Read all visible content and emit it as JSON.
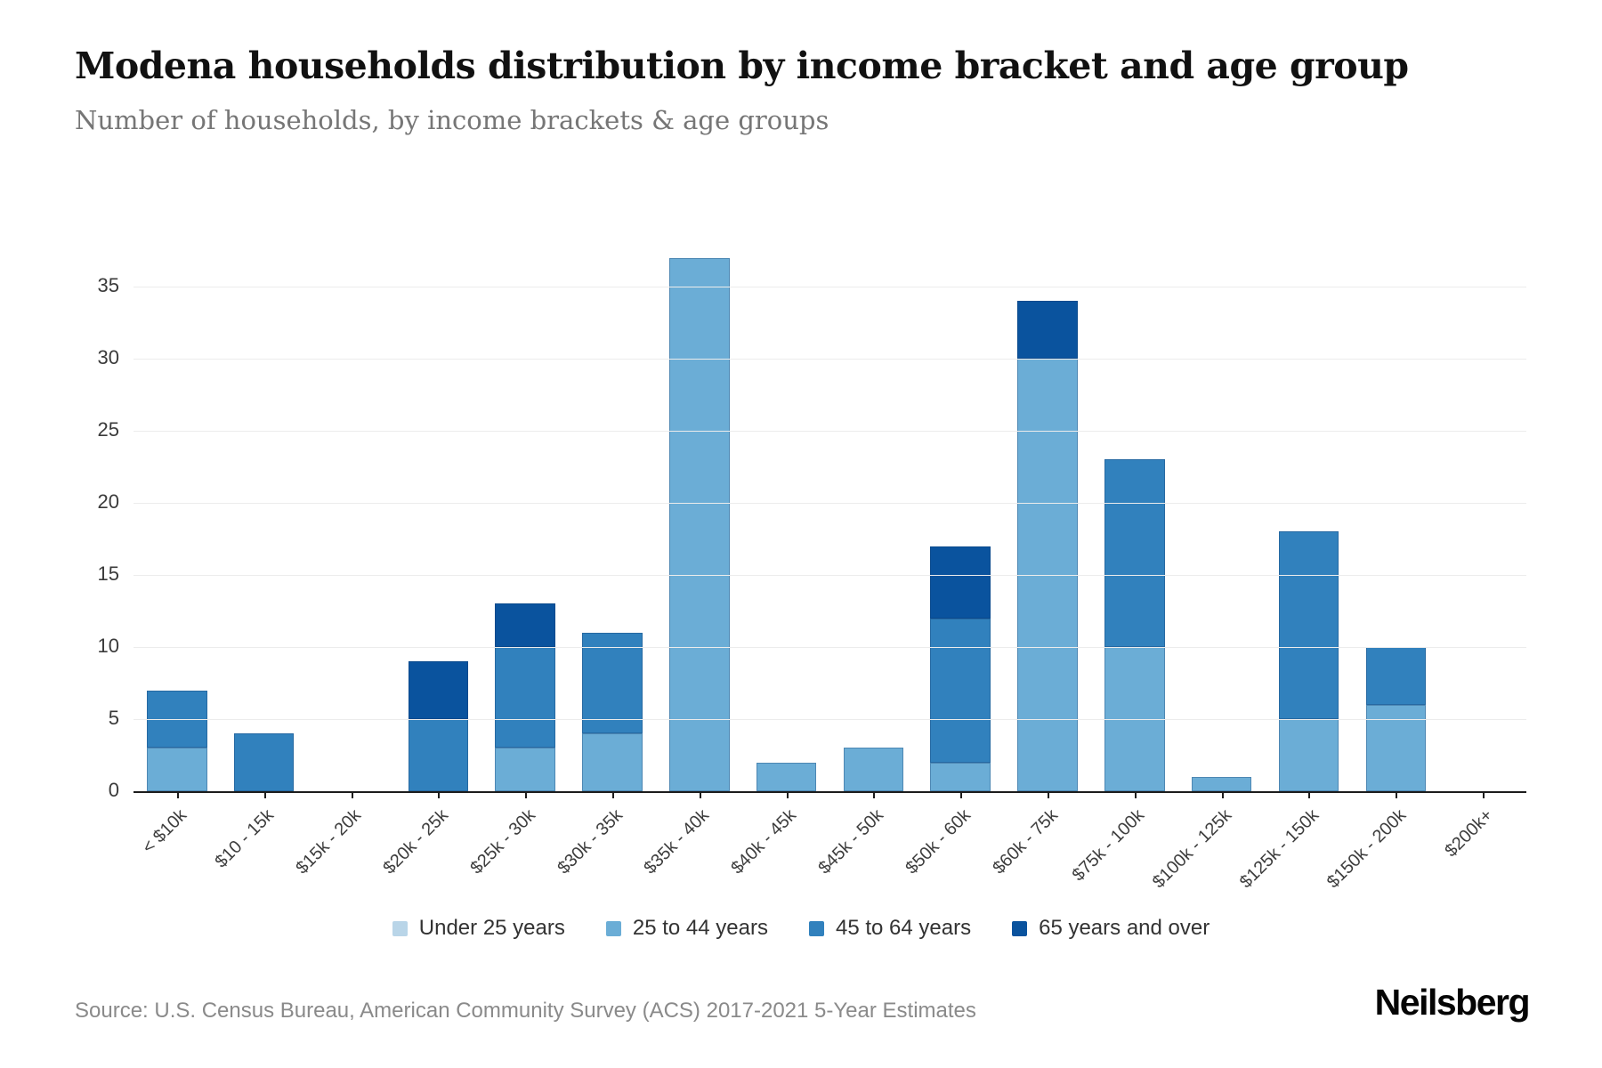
{
  "header": {
    "title": "Modena households distribution by income bracket and age group",
    "subtitle": "Number of households, by income brackets & age groups"
  },
  "chart_data": {
    "type": "bar",
    "stacked": true,
    "title": "Modena households distribution by income bracket and age group",
    "subtitle": "Number of households, by income brackets & age groups",
    "xlabel": "",
    "ylabel": "",
    "categories": [
      "< $10k",
      "$10 - 15k",
      "$15k - 20k",
      "$20k - 25k",
      "$25k - 30k",
      "$30k - 35k",
      "$35k - 40k",
      "$40k - 45k",
      "$45k - 50k",
      "$50k - 60k",
      "$60k - 75k",
      "$75k - 100k",
      "$100k - 125k",
      "$125k - 150k",
      "$150k - 200k",
      "$200k+"
    ],
    "series": [
      {
        "name": "Under 25 years",
        "color": "#b9d5e8",
        "values": [
          0,
          0,
          0,
          0,
          0,
          0,
          0,
          0,
          0,
          0,
          0,
          0,
          0,
          0,
          0,
          0
        ]
      },
      {
        "name": "25 to 44 years",
        "color": "#6badd6",
        "values": [
          3,
          0,
          0,
          0,
          3,
          4,
          37,
          2,
          3,
          2,
          30,
          10,
          1,
          5,
          6,
          0
        ]
      },
      {
        "name": "45 to 64 years",
        "color": "#3181bd",
        "values": [
          4,
          4,
          0,
          5,
          7,
          7,
          0,
          0,
          0,
          10,
          0,
          13,
          0,
          13,
          4,
          0
        ]
      },
      {
        "name": "65 years and over",
        "color": "#0a539e",
        "values": [
          0,
          0,
          0,
          4,
          3,
          0,
          0,
          0,
          0,
          5,
          4,
          0,
          0,
          0,
          0,
          0
        ]
      }
    ],
    "totals": [
      7,
      4,
      0,
      9,
      13,
      11,
      37,
      2,
      3,
      17,
      34,
      23,
      1,
      18,
      10,
      0
    ],
    "yticks": [
      0,
      5,
      10,
      15,
      20,
      25,
      30,
      35
    ],
    "ylim": [
      0,
      38.5
    ],
    "grid": "horizontal",
    "legend_position": "bottom"
  },
  "footer": {
    "source": "Source: U.S. Census Bureau, American Community Survey (ACS) 2017-2021 5-Year Estimates",
    "brand": "Neilsberg"
  }
}
